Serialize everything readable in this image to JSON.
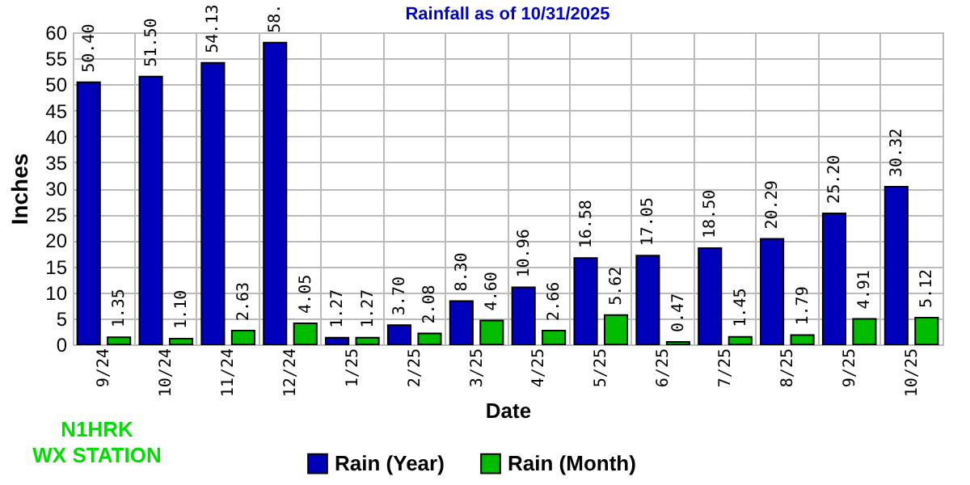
{
  "chart_data": {
    "type": "bar",
    "title": "Rainfall as of 10/31/2025",
    "xlabel": "Date",
    "ylabel": "Inches",
    "categories": [
      "9/24",
      "10/24",
      "11/24",
      "12/24",
      "1/25",
      "2/25",
      "3/25",
      "4/25",
      "5/25",
      "6/25",
      "7/25",
      "8/25",
      "9/25",
      "10/25"
    ],
    "series": [
      {
        "name": "Rain (Year)",
        "color": "#0000bb",
        "values": [
          50.4,
          51.5,
          54.13,
          58.0,
          1.27,
          3.7,
          8.3,
          10.96,
          16.58,
          17.05,
          18.5,
          20.29,
          25.2,
          30.32
        ],
        "value_labels": [
          "50.40",
          "51.50",
          "54.13",
          "58.",
          "1.27",
          "3.70",
          "8.30",
          "10.96",
          "16.58",
          "17.05",
          "18.50",
          "20.29",
          "25.20",
          "30.32"
        ]
      },
      {
        "name": "Rain (Month)",
        "color": "#00bb00",
        "values": [
          1.35,
          1.1,
          2.63,
          4.05,
          1.27,
          2.08,
          4.6,
          2.66,
          5.62,
          0.47,
          1.45,
          1.79,
          4.91,
          5.12
        ],
        "value_labels": [
          "1.35",
          "1.10",
          "2.63",
          "4.05",
          "1.27",
          "2.08",
          "4.60",
          "2.66",
          "5.62",
          "0.47",
          "1.45",
          "1.79",
          "4.91",
          "5.12"
        ]
      }
    ],
    "ylim": [
      0,
      60
    ],
    "yticks": [
      0,
      5,
      10,
      15,
      20,
      25,
      30,
      35,
      40,
      45,
      50,
      55,
      60
    ],
    "grid": true,
    "legend": "bottom",
    "annotations": [
      "N1HRK\nWX STATION"
    ]
  }
}
